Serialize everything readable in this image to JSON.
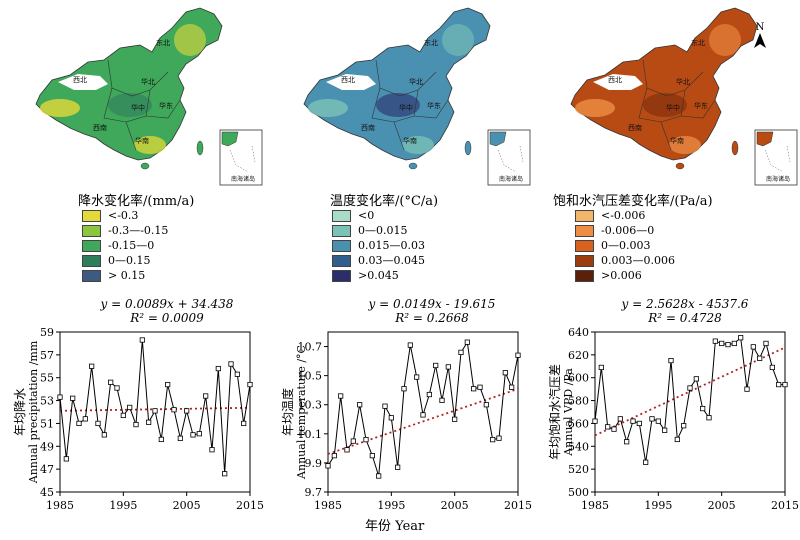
{
  "maps": [
    {
      "legend_title": "降水变化率/(mm/a)",
      "legend": [
        {
          "label": "<-0.3",
          "color": "#e3d93a"
        },
        {
          "label": "-0.3—-0.15",
          "color": "#8cc63f"
        },
        {
          "label": "-0.15—0",
          "color": "#3fa85a"
        },
        {
          "label": "0—0.15",
          "color": "#2e7d5b"
        },
        {
          "label": "> 0.15",
          "color": "#3d5a80"
        }
      ],
      "base_color": "#3fa85a",
      "accent_color": "#e3d93a",
      "dark_color": "#2e7d5b"
    },
    {
      "legend_title": "温度变化率/(°C/a)",
      "legend": [
        {
          "label": "<0",
          "color": "#a8dcc8"
        },
        {
          "label": "0—0.015",
          "color": "#7cc3b7"
        },
        {
          "label": "0.015—0.03",
          "color": "#4a90b0"
        },
        {
          "label": "0.03—0.045",
          "color": "#2f5e8f"
        },
        {
          "label": ">0.045",
          "color": "#2b2e6b"
        }
      ],
      "base_color": "#4a90b0",
      "accent_color": "#7cc3b7",
      "dark_color": "#2b2e6b"
    },
    {
      "legend_title": "饱和水汽压差变化率/(Pa/a)",
      "legend": [
        {
          "label": "<-0.006",
          "color": "#f2b66b"
        },
        {
          "label": "-0.006—0",
          "color": "#ee8e45"
        },
        {
          "label": "0—0.003",
          "color": "#d9621e"
        },
        {
          "label": "0.003—0.006",
          "color": "#9c3d10"
        },
        {
          "label": ">0.006",
          "color": "#5a200a"
        }
      ],
      "base_color": "#b84a14",
      "accent_color": "#ee8e45",
      "dark_color": "#7a2d0c"
    }
  ],
  "map_labels": [
    "东北",
    "华北",
    "西北",
    "华中",
    "西南",
    "华东",
    "华南",
    "南海诸岛"
  ],
  "north_label": "N",
  "xlabel_shared": "年份 Year",
  "chart_data": [
    {
      "type": "line",
      "equation": "y = 0.0089x + 34.438",
      "r2": "R² = 0.0009",
      "ylabel": "年均降水",
      "ylabel2": "Annual precipitation /mm",
      "xlim": [
        1985,
        2015
      ],
      "ylim": [
        45,
        59
      ],
      "xticks": [
        1985,
        1995,
        2005,
        2015
      ],
      "yticks": [
        45,
        47,
        49,
        51,
        53,
        55,
        57,
        59
      ],
      "x": [
        1985,
        1986,
        1987,
        1988,
        1989,
        1990,
        1991,
        1992,
        1993,
        1994,
        1995,
        1996,
        1997,
        1998,
        1999,
        2000,
        2001,
        2002,
        2003,
        2004,
        2005,
        2006,
        2007,
        2008,
        2009,
        2010,
        2011,
        2012,
        2013,
        2014,
        2015
      ],
      "values": [
        53.3,
        47.9,
        53.2,
        51.0,
        51.4,
        56.0,
        51.0,
        50.0,
        54.6,
        54.1,
        51.7,
        52.4,
        50.9,
        58.3,
        51.1,
        52.1,
        49.6,
        54.4,
        52.2,
        49.7,
        52.1,
        50.0,
        50.1,
        53.4,
        48.7,
        55.8,
        46.6,
        56.2,
        55.3,
        51.0,
        54.4
      ],
      "trend": [
        0.0089,
        34.438
      ],
      "ytick_decimals": 0
    },
    {
      "type": "line",
      "equation": "y = 0.0149x - 19.615",
      "r2": "R² = 0.2668",
      "ylabel": "年均温度",
      "ylabel2": "Annual temperature /°C",
      "xlim": [
        1985,
        2015
      ],
      "ylim": [
        9.7,
        10.8
      ],
      "xticks": [
        1985,
        1995,
        2005,
        2015
      ],
      "yticks": [
        9.7,
        9.9,
        10.1,
        10.3,
        10.5,
        10.7
      ],
      "x": [
        1985,
        1986,
        1987,
        1988,
        1989,
        1990,
        1991,
        1992,
        1993,
        1994,
        1995,
        1996,
        1997,
        1998,
        1999,
        2000,
        2001,
        2002,
        2003,
        2004,
        2005,
        2006,
        2007,
        2008,
        2009,
        2010,
        2011,
        2012,
        2013,
        2014,
        2015
      ],
      "values": [
        9.88,
        9.95,
        10.36,
        9.99,
        10.05,
        10.3,
        10.06,
        9.95,
        9.81,
        10.29,
        10.21,
        9.87,
        10.41,
        10.71,
        10.49,
        10.23,
        10.37,
        10.57,
        10.33,
        10.56,
        10.2,
        10.66,
        10.73,
        10.41,
        10.42,
        10.3,
        10.06,
        10.07,
        10.52,
        10.42,
        10.64
      ],
      "trend": [
        0.0149,
        -19.615
      ],
      "ytick_decimals": 1
    },
    {
      "type": "line",
      "equation": "y = 2.5628x - 4537.6",
      "r2": "R² = 0.4728",
      "ylabel": "年均饱和水汽压差",
      "ylabel2": "Annual VPD /Pa",
      "xlim": [
        1985,
        2015
      ],
      "ylim": [
        500,
        640
      ],
      "xticks": [
        1985,
        1995,
        2005,
        2015
      ],
      "yticks": [
        500,
        520,
        540,
        560,
        580,
        600,
        620,
        640
      ],
      "x": [
        1985,
        1986,
        1987,
        1988,
        1989,
        1990,
        1991,
        1992,
        1993,
        1994,
        1995,
        1996,
        1997,
        1998,
        1999,
        2000,
        2001,
        2002,
        2003,
        2004,
        2005,
        2006,
        2007,
        2008,
        2009,
        2010,
        2011,
        2012,
        2013,
        2014,
        2015
      ],
      "values": [
        562,
        609,
        557,
        555,
        564,
        544,
        562,
        560,
        526,
        564,
        562,
        554,
        615,
        546,
        558,
        591,
        599,
        573,
        565,
        632,
        630,
        629,
        630,
        635,
        590,
        627,
        617,
        630,
        609,
        594,
        594
      ],
      "trend": [
        2.5628,
        -4537.6
      ],
      "ytick_decimals": 0
    }
  ]
}
